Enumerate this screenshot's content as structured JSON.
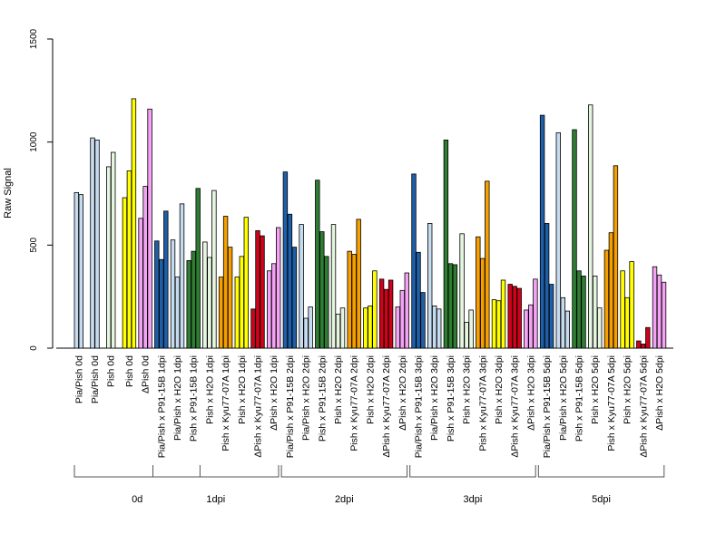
{
  "chart_data": {
    "type": "bar",
    "ylabel": "Raw Signal",
    "ylim": [
      0,
      1500
    ],
    "yticks": [
      0,
      500,
      1000,
      1500
    ],
    "grid": false,
    "legend": "none",
    "categories": [
      {
        "label": "Pia/Pish 0d",
        "group": "0d",
        "color": "#c6dbef",
        "values": [
          755,
          745
        ]
      },
      {
        "label": "Pia/Pish 0d",
        "group": "0d",
        "color": "#c6dbef",
        "values": [
          1020,
          1010
        ]
      },
      {
        "label": "Pish 0d",
        "group": "0d",
        "color": "#e5f5e0",
        "values": [
          880,
          950
        ]
      },
      {
        "label": "Pish 0d",
        "group": "0d",
        "color": "#ffff00",
        "values": [
          730,
          860,
          1210
        ]
      },
      {
        "label": "ΔPish 0d",
        "group": "0d",
        "color": "#f4a3f4",
        "values": [
          630,
          785,
          1160
        ]
      },
      {
        "label": "Pia/Pish x P91-15B 1dpi",
        "group": "1dpi",
        "color": "#1f5fa8",
        "values": [
          520,
          430,
          665
        ]
      },
      {
        "label": "Pia/Pish x H2O 1dpi",
        "group": "1dpi",
        "color": "#c6dbef",
        "values": [
          525,
          345,
          700
        ]
      },
      {
        "label": "Pish x P91-15B 1dpi",
        "group": "1dpi",
        "color": "#2e7d32",
        "values": [
          425,
          470,
          775
        ]
      },
      {
        "label": "Pish x H2O 1dpi",
        "group": "1dpi",
        "color": "#e5f5e0",
        "values": [
          515,
          440,
          765
        ]
      },
      {
        "label": "Pish x Kyu77-07A 1dpi",
        "group": "1dpi",
        "color": "#f59f00",
        "values": [
          345,
          640,
          490
        ]
      },
      {
        "label": "Pish x H2O 1dpi",
        "group": "1dpi",
        "color": "#ffff00",
        "values": [
          345,
          445,
          635
        ]
      },
      {
        "label": "ΔPish x Kyu77-07A 1dpi",
        "group": "1dpi",
        "color": "#d0021b",
        "values": [
          190,
          570,
          545
        ]
      },
      {
        "label": "ΔPish x H2O 1dpi",
        "group": "1dpi",
        "color": "#f4a3f4",
        "values": [
          375,
          410,
          585
        ]
      },
      {
        "label": "Pia/Pish x P91-15B 2dpi",
        "group": "2dpi",
        "color": "#1f5fa8",
        "values": [
          855,
          650,
          490
        ]
      },
      {
        "label": "Pia/Pish x H2O 2dpi",
        "group": "2dpi",
        "color": "#c6dbef",
        "values": [
          600,
          145,
          200
        ]
      },
      {
        "label": "Pish x P91-15B 2dpi",
        "group": "2dpi",
        "color": "#2e7d32",
        "values": [
          815,
          565,
          445
        ]
      },
      {
        "label": "Pish x H2O 2dpi",
        "group": "2dpi",
        "color": "#e5f5e0",
        "values": [
          600,
          165,
          195
        ]
      },
      {
        "label": "Pish x Kyu77-07A 2dpi",
        "group": "2dpi",
        "color": "#f59f00",
        "values": [
          470,
          455,
          625
        ]
      },
      {
        "label": "Pish x H2O 2dpi",
        "group": "2dpi",
        "color": "#ffff00",
        "values": [
          195,
          205,
          375
        ]
      },
      {
        "label": "ΔPish x Kyu77-07A 2dpi",
        "group": "2dpi",
        "color": "#d0021b",
        "values": [
          335,
          285,
          330
        ]
      },
      {
        "label": "ΔPish x H2O 2dpi",
        "group": "2dpi",
        "color": "#f4a3f4",
        "values": [
          200,
          280,
          365
        ]
      },
      {
        "label": "Pia/Pish x P91-15B 3dpi",
        "group": "3dpi",
        "color": "#1f5fa8",
        "values": [
          845,
          465,
          270
        ]
      },
      {
        "label": "Pia/Pish x H2O 3dpi",
        "group": "3dpi",
        "color": "#c6dbef",
        "values": [
          605,
          205,
          190
        ]
      },
      {
        "label": "Pish x P91-15B 3dpi",
        "group": "3dpi",
        "color": "#2e7d32",
        "values": [
          1010,
          410,
          405
        ]
      },
      {
        "label": "Pish x H2O 3dpi",
        "group": "3dpi",
        "color": "#e5f5e0",
        "values": [
          555,
          125,
          185
        ]
      },
      {
        "label": "Pish x Kyu77-07A 3dpi",
        "group": "3dpi",
        "color": "#f59f00",
        "values": [
          540,
          435,
          810
        ]
      },
      {
        "label": "Pish x H2O 3dpi",
        "group": "3dpi",
        "color": "#ffff00",
        "values": [
          235,
          230,
          330
        ]
      },
      {
        "label": "ΔPish x Kyu77-07A 3dpi",
        "group": "3dpi",
        "color": "#d0021b",
        "values": [
          310,
          300,
          290
        ]
      },
      {
        "label": "ΔPish x H2O 3dpi",
        "group": "3dpi",
        "color": "#f4a3f4",
        "values": [
          185,
          210,
          335
        ]
      },
      {
        "label": "Pia/Pish x P91-15B 5dpi",
        "group": "5dpi",
        "color": "#1f5fa8",
        "values": [
          1130,
          605,
          310
        ]
      },
      {
        "label": "Pia/Pish x H2O 5dpi",
        "group": "5dpi",
        "color": "#c6dbef",
        "values": [
          1045,
          245,
          180
        ]
      },
      {
        "label": "Pish x P91-15B 5dpi",
        "group": "5dpi",
        "color": "#2e7d32",
        "values": [
          1060,
          375,
          350
        ]
      },
      {
        "label": "Pish x H2O 5dpi",
        "group": "5dpi",
        "color": "#e5f5e0",
        "values": [
          1180,
          350,
          195
        ]
      },
      {
        "label": "Pish x Kyu77-07A 5dpi",
        "group": "5dpi",
        "color": "#f59f00",
        "values": [
          475,
          560,
          885
        ]
      },
      {
        "label": "Pish x H2O 5dpi",
        "group": "5dpi",
        "color": "#ffff00",
        "values": [
          375,
          245,
          420
        ]
      },
      {
        "label": "ΔPish x Kyu77-07A 5dpi",
        "group": "5dpi",
        "color": "#d0021b",
        "values": [
          35,
          20,
          100
        ]
      },
      {
        "label": "ΔPish x H2O 5dpi",
        "group": "5dpi",
        "color": "#f4a3f4",
        "values": [
          395,
          355,
          320
        ]
      }
    ],
    "groups": [
      "0d",
      "1dpi",
      "2dpi",
      "3dpi",
      "5dpi"
    ]
  }
}
